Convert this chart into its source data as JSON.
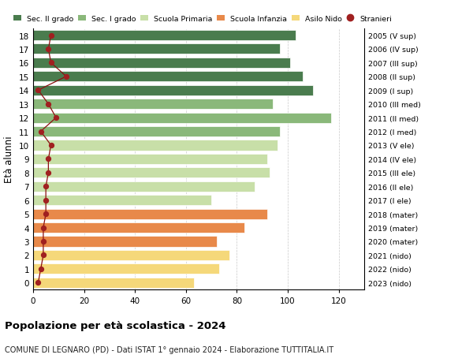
{
  "ages": [
    0,
    1,
    2,
    3,
    4,
    5,
    6,
    7,
    8,
    9,
    10,
    11,
    12,
    13,
    14,
    15,
    16,
    17,
    18
  ],
  "right_labels": [
    "2023 (nido)",
    "2022 (nido)",
    "2021 (nido)",
    "2020 (mater)",
    "2019 (mater)",
    "2018 (mater)",
    "2017 (I ele)",
    "2016 (II ele)",
    "2015 (III ele)",
    "2014 (IV ele)",
    "2013 (V ele)",
    "2012 (I med)",
    "2011 (II med)",
    "2010 (III med)",
    "2009 (I sup)",
    "2008 (II sup)",
    "2007 (III sup)",
    "2006 (IV sup)",
    "2005 (V sup)"
  ],
  "bar_values": [
    63,
    73,
    77,
    72,
    83,
    92,
    70,
    87,
    93,
    92,
    96,
    97,
    117,
    94,
    110,
    106,
    101,
    97,
    103
  ],
  "stranieri_values": [
    2,
    3,
    4,
    4,
    4,
    5,
    5,
    5,
    6,
    6,
    7,
    3,
    9,
    6,
    2,
    13,
    7,
    6,
    7
  ],
  "bar_colors": [
    "#f5d87a",
    "#f5d87a",
    "#f5d87a",
    "#e8894a",
    "#e8894a",
    "#e8894a",
    "#c8dfa8",
    "#c8dfa8",
    "#c8dfa8",
    "#c8dfa8",
    "#c8dfa8",
    "#8ab87a",
    "#8ab87a",
    "#8ab87a",
    "#4a7c4e",
    "#4a7c4e",
    "#4a7c4e",
    "#4a7c4e",
    "#4a7c4e"
  ],
  "legend_labels": [
    "Sec. II grado",
    "Sec. I grado",
    "Scuola Primaria",
    "Scuola Infanzia",
    "Asilo Nido",
    "Stranieri"
  ],
  "legend_colors": [
    "#4a7c4e",
    "#8ab87a",
    "#c8dfa8",
    "#e8894a",
    "#f5d87a",
    "#a02020"
  ],
  "ylabel_label": "Età alunni",
  "title": "Popolazione per età scolastica - 2024",
  "subtitle": "COMUNE DI LEGNARO (PD) - Dati ISTAT 1° gennaio 2024 - Elaborazione TUTTITALIA.IT",
  "xlim": [
    0,
    130
  ],
  "xticks": [
    0,
    20,
    40,
    60,
    80,
    100,
    120
  ],
  "bar_height": 0.75
}
